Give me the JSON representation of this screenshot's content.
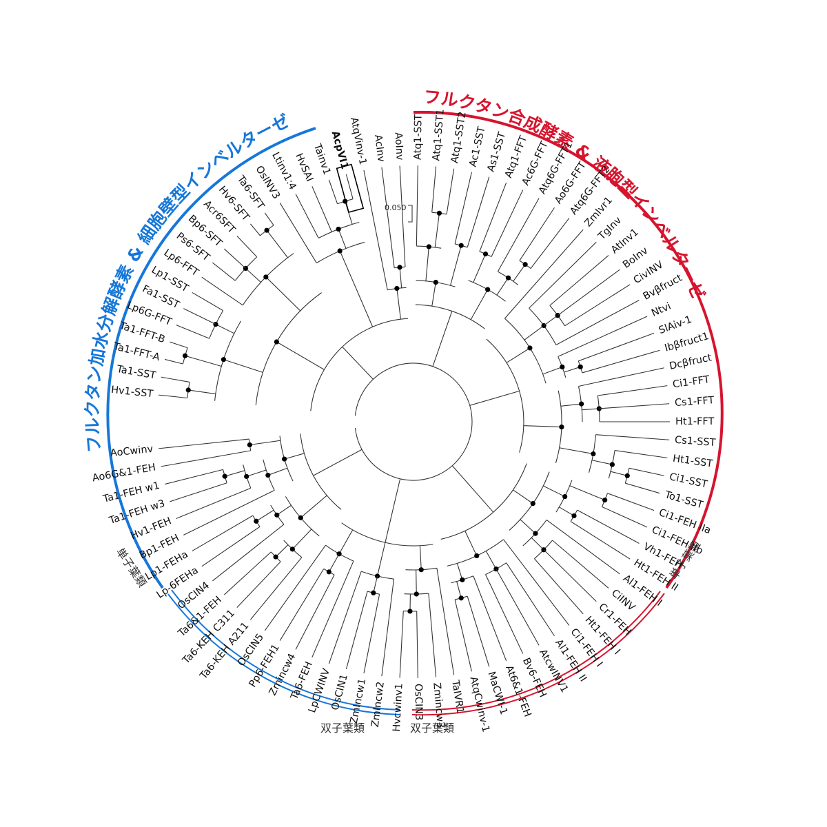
{
  "titles": {
    "synthesis": "フルクタン合成酵素 & 液胞型インベルターゼ",
    "hydrolysis": "フルクタン加水分解酵素 & 細胞壁型インベルターゼ"
  },
  "groups": {
    "monocot_right": "単子葉類",
    "monocot_left": "単子葉類",
    "dicot_right": "双子葉類",
    "dicot_left": "双子葉類"
  },
  "scale_bar": "0.050",
  "highlight": "AcpVI1",
  "colors": {
    "synthesis": "#d6142e",
    "hydrolysis": "#1677d9"
  },
  "leaves": [
    "Hv1-SST",
    "Ta1-SST",
    "Ta1-FFT-A",
    "Ta1-FFT-B",
    "Lp6G-FFT",
    "Fa1-SST",
    "Lp1-SST",
    "Lp6-FFT",
    "Ps6-SFT",
    "Bp6-SFT",
    "Acr6SFT",
    "Hv6-SFT",
    "Ta6-SFT",
    "OsINV3",
    "Ltinv1:4",
    "HvSAI",
    "Tainv1",
    "AcpVI1",
    "AtqVinv-1",
    "AcInv",
    "AoInv",
    "Atq1-SST",
    "Atq1-SST1",
    "Atq1-SST2",
    "Ac1-SST",
    "As1-SST",
    "Atq1-FFT",
    "Ac6G-FFT",
    "Atq6G-FFT1",
    "Ao6G-FFT",
    "Atq6G-FFT2",
    "ZmIvr1",
    "TgInv",
    "AtInv1",
    "BoInv",
    "CivINV",
    "Bvβfruct",
    "Ntvi",
    "SlAiv-1",
    "Ibβfruct1",
    "Dcβfruct",
    "Ci1-FFT",
    "Cs1-FFT",
    "Ht1-FFT",
    "Cs1-SST",
    "Ht1-SST",
    "Ci1-SST",
    "To1-SST",
    "Ci1-FEH IIa",
    "Ci1-FEH IIb",
    "Vh1-FEH",
    "Ht1-FEH II",
    "Al1-FEH I",
    "CiINV",
    "Cr1-FEH",
    "Ht1-FEH I",
    "Ci1-FEH I",
    "Al1-FEH II",
    "AtcwINV1",
    "Bv6-FEH",
    "At6&1-FEH",
    "MaCWI-1",
    "AtqCwinv-1",
    "TaIVR1",
    "Zmincw3",
    "OsCIN3",
    "Hvcwinv1",
    "ZmIncw2",
    "ZmIncw1",
    "OsCIN1",
    "LpCWINV",
    "Ta6-FEH",
    "Zmincw4",
    "Pp6-FEH1",
    "OsCIN5",
    "Ta6-KEH A211",
    "Ta6-KEH C311",
    "Ta6&1-FEH",
    "OsCIN4",
    "Lp-6FEHa",
    "Lp1-FEHa",
    "Bp1-FEH",
    "Hv1-FEH",
    "Ta1-FEH w3",
    "Ta1-FEH w1",
    "Ao6G&1-FEH",
    "AoCwinv"
  ]
}
